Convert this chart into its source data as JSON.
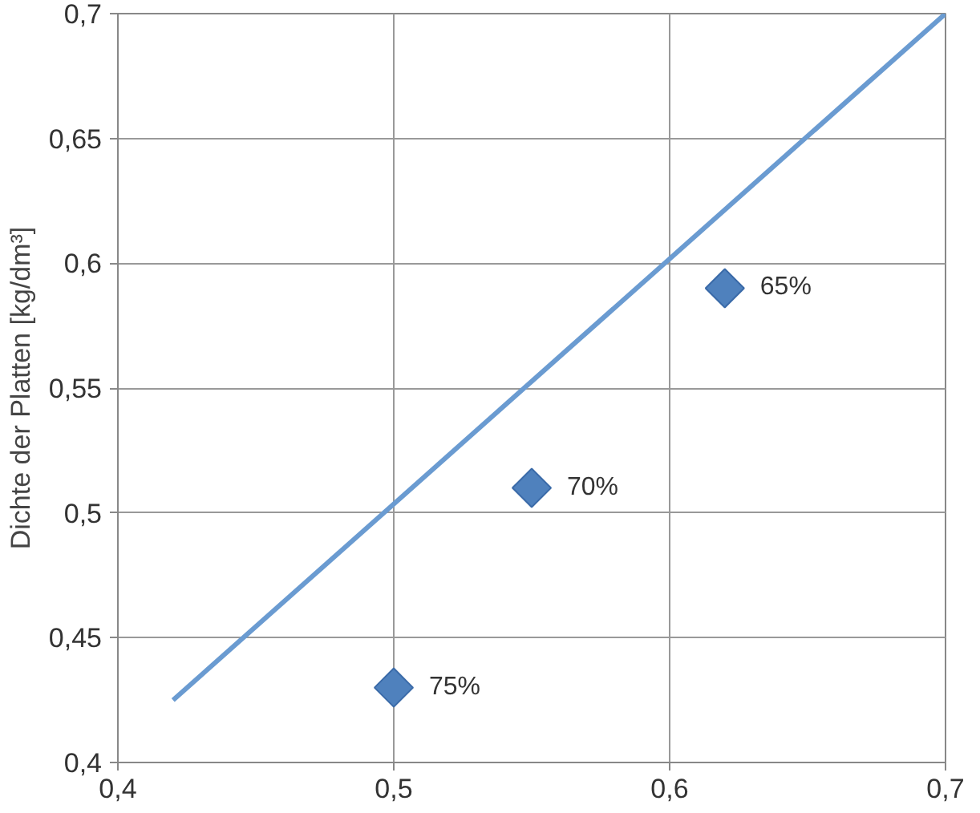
{
  "chart_data": {
    "type": "scatter",
    "ylabel": "Dichte der Platten [kg/dm³]",
    "xlim": [
      0.4,
      0.7
    ],
    "ylim": [
      0.4,
      0.7
    ],
    "xticks": [
      {
        "value": 0.4,
        "label": "0,4"
      },
      {
        "value": 0.5,
        "label": "0,5"
      },
      {
        "value": 0.6,
        "label": "0,6"
      },
      {
        "value": 0.7,
        "label": "0,7"
      }
    ],
    "yticks": [
      {
        "value": 0.4,
        "label": "0,4"
      },
      {
        "value": 0.45,
        "label": "0,45"
      },
      {
        "value": 0.5,
        "label": "0,5"
      },
      {
        "value": 0.55,
        "label": "0,55"
      },
      {
        "value": 0.6,
        "label": "0,6"
      },
      {
        "value": 0.65,
        "label": "0,65"
      },
      {
        "value": 0.7,
        "label": "0,7"
      }
    ],
    "grid": true,
    "annotations": [
      {
        "text": "75%",
        "x": 0.5,
        "y": 0.43
      },
      {
        "text": "70%",
        "x": 0.55,
        "y": 0.51
      },
      {
        "text": "65%",
        "x": 0.62,
        "y": 0.59
      }
    ],
    "series": [
      {
        "marker": "diamond",
        "color": "#4f81bd",
        "x": [
          0.5,
          0.55,
          0.62
        ],
        "values": [
          0.43,
          0.51,
          0.59
        ]
      },
      {
        "type": "line",
        "color": "#6a9bd1",
        "x": [
          0.42,
          0.7
        ],
        "values": [
          0.425,
          0.7
        ]
      }
    ]
  }
}
